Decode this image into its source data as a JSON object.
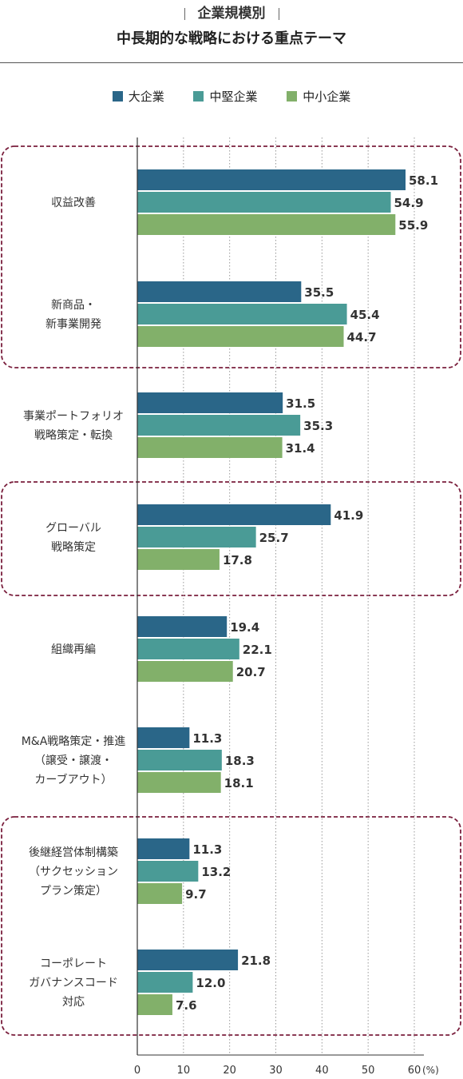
{
  "title": "企業規模別",
  "subtitle": "中長期的な戦略における重点テーマ",
  "chart_data": {
    "type": "bar",
    "orientation": "horizontal",
    "categories": [
      "収益改善",
      "新商品・\n新事業開発",
      "事業ポートフォリオ\n戦略策定・転換",
      "グローバル\n戦略策定",
      "組織再編",
      "M&A戦略策定・推進\n（譲受・譲渡・\nカーブアウト）",
      "後継経営体制構築\n（サクセッション\nプラン策定）",
      "コーポレート\nガバナンスコード\n対応"
    ],
    "series": [
      {
        "name": "大企業",
        "color": "#2a6688",
        "values": [
          58.1,
          35.5,
          31.5,
          41.9,
          19.4,
          11.3,
          11.3,
          21.8
        ]
      },
      {
        "name": "中堅企業",
        "color": "#4a9b96",
        "values": [
          54.9,
          45.4,
          35.3,
          25.7,
          22.1,
          18.3,
          13.2,
          12.0
        ]
      },
      {
        "name": "中小企業",
        "color": "#82b06a",
        "values": [
          55.9,
          44.7,
          31.4,
          17.8,
          20.7,
          18.1,
          9.7,
          7.6
        ]
      }
    ],
    "xlim": [
      0,
      60
    ],
    "xticks": [
      "0",
      "10",
      "20",
      "30",
      "40",
      "50",
      "60"
    ],
    "xunit": "(%)",
    "legend_position": "top-center",
    "grid": "vertical-dotted",
    "highlight_color": "#7a1f3d"
  }
}
